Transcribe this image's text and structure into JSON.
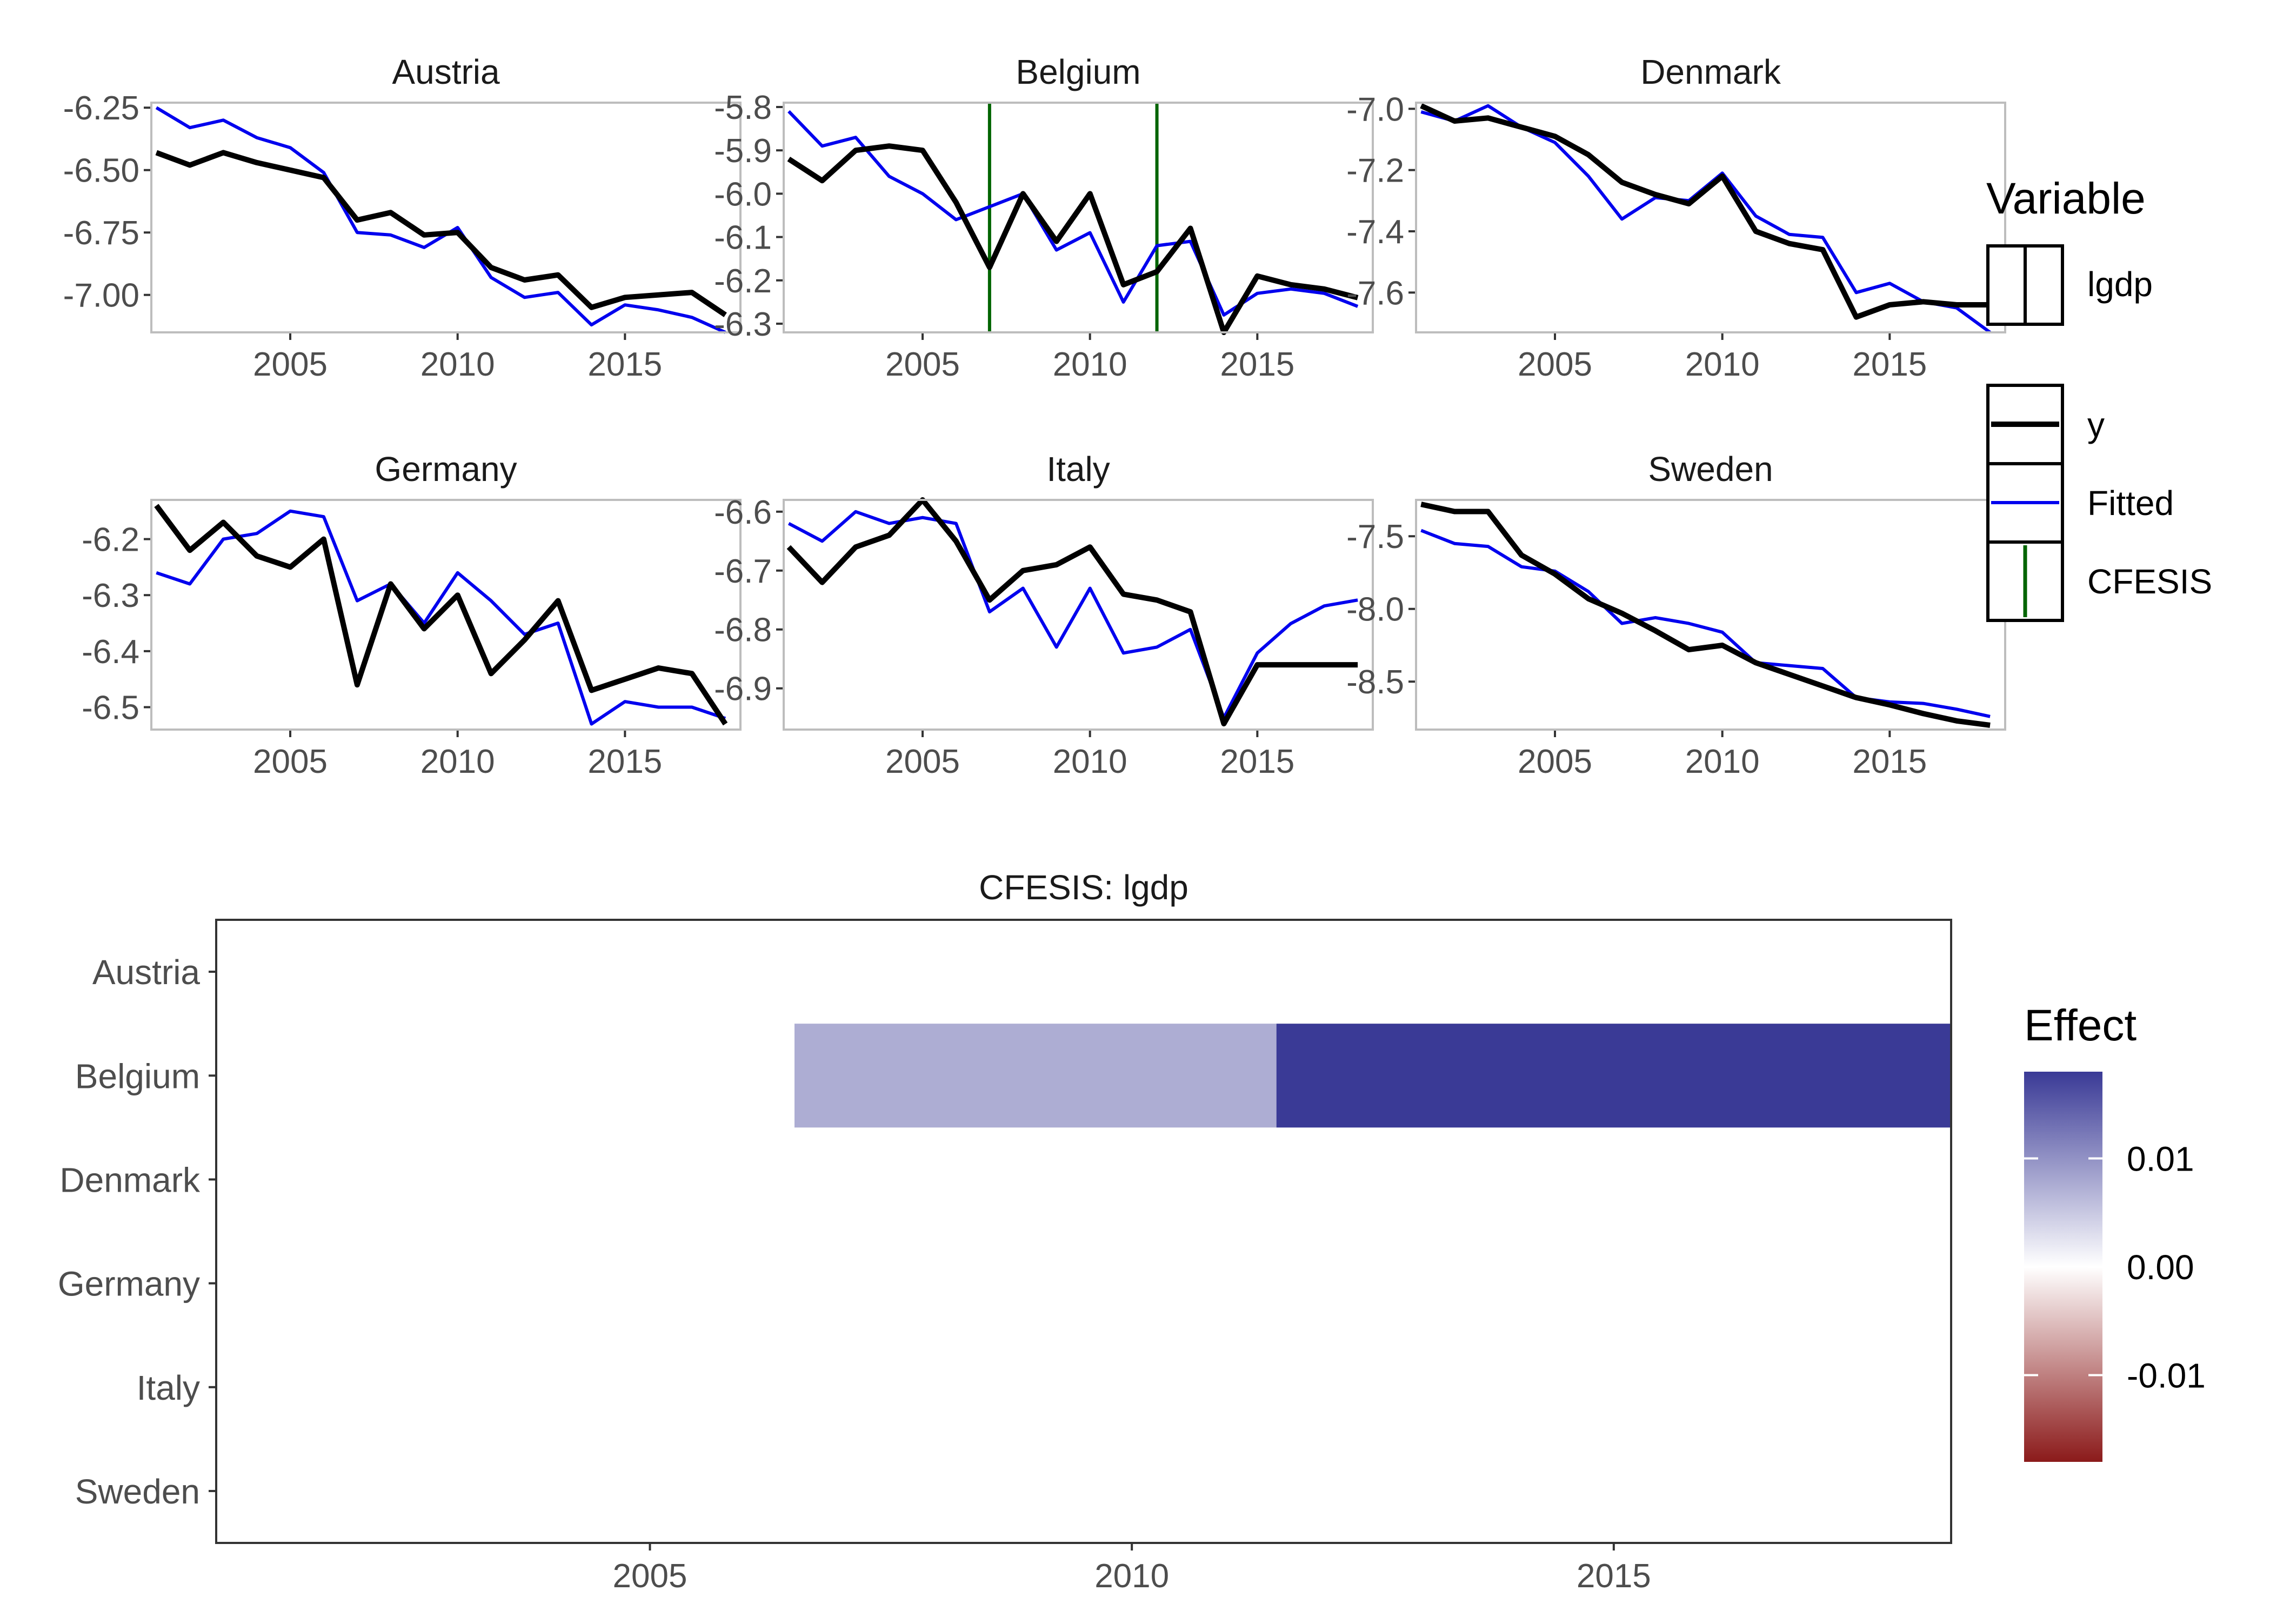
{
  "chart_data": [
    {
      "type": "line",
      "layout": "facet_wrap",
      "facets": [
        {
          "title": "Austria",
          "x": [
            2001,
            2002,
            2003,
            2004,
            2005,
            2006,
            2007,
            2008,
            2009,
            2010,
            2011,
            2012,
            2013,
            2014,
            2015,
            2016,
            2017,
            2018
          ],
          "ylim": [
            -7.15,
            -6.23
          ],
          "yticks": [
            -6.25,
            -6.5,
            -6.75,
            -7.0
          ],
          "ytick_labels": [
            "-6.25",
            "-6.50",
            "-6.75",
            "-7.00"
          ],
          "series": [
            {
              "name": "y",
              "values": [
                -6.43,
                -6.48,
                -6.43,
                -6.47,
                -6.5,
                -6.53,
                -6.7,
                -6.67,
                -6.76,
                -6.75,
                -6.89,
                -6.94,
                -6.92,
                -7.05,
                -7.01,
                -7.0,
                -6.99,
                -7.08
              ]
            },
            {
              "name": "Fitted",
              "values": [
                -6.25,
                -6.33,
                -6.3,
                -6.37,
                -6.41,
                -6.51,
                -6.75,
                -6.76,
                -6.81,
                -6.73,
                -6.93,
                -7.01,
                -6.99,
                -7.12,
                -7.04,
                -7.06,
                -7.09,
                -7.15
              ]
            }
          ],
          "cfesis": []
        },
        {
          "title": "Belgium",
          "x": [
            2001,
            2002,
            2003,
            2004,
            2005,
            2006,
            2007,
            2008,
            2009,
            2010,
            2011,
            2012,
            2013,
            2014,
            2015,
            2016,
            2017,
            2018
          ],
          "ylim": [
            -6.32,
            -5.79
          ],
          "yticks": [
            -5.8,
            -5.9,
            -6.0,
            -6.1,
            -6.2,
            -6.3
          ],
          "ytick_labels": [
            "-5.8",
            "-5.9",
            "-6.0",
            "-6.1",
            "-6.2",
            "-6.3"
          ],
          "series": [
            {
              "name": "y",
              "values": [
                -5.92,
                -5.97,
                -5.9,
                -5.89,
                -5.9,
                -6.02,
                -6.17,
                -6.0,
                -6.11,
                -6.0,
                -6.21,
                -6.18,
                -6.08,
                -6.32,
                -6.19,
                -6.21,
                -6.22,
                -6.24
              ]
            },
            {
              "name": "Fitted",
              "values": [
                -5.81,
                -5.89,
                -5.87,
                -5.96,
                -6.0,
                -6.06,
                -6.03,
                -6.0,
                -6.13,
                -6.09,
                -6.25,
                -6.12,
                -6.11,
                -6.28,
                -6.23,
                -6.22,
                -6.23,
                -6.26
              ]
            }
          ],
          "cfesis": [
            2007,
            2012
          ]
        },
        {
          "title": "Denmark",
          "x": [
            2001,
            2002,
            2003,
            2004,
            2005,
            2006,
            2007,
            2008,
            2009,
            2010,
            2011,
            2012,
            2013,
            2014,
            2015,
            2016,
            2017,
            2018
          ],
          "ylim": [
            -7.73,
            -6.98
          ],
          "yticks": [
            -7.0,
            -7.2,
            -7.4,
            -7.6
          ],
          "ytick_labels": [
            "-7.0",
            "-7.2",
            "-7.4",
            "-7.6"
          ],
          "series": [
            {
              "name": "y",
              "values": [
                -6.99,
                -7.04,
                -7.03,
                -7.06,
                -7.09,
                -7.15,
                -7.24,
                -7.28,
                -7.31,
                -7.22,
                -7.4,
                -7.44,
                -7.46,
                -7.68,
                -7.64,
                -7.63,
                -7.64,
                -7.64
              ]
            },
            {
              "name": "Fitted",
              "values": [
                -7.01,
                -7.04,
                -6.99,
                -7.06,
                -7.11,
                -7.22,
                -7.36,
                -7.29,
                -7.3,
                -7.21,
                -7.35,
                -7.41,
                -7.42,
                -7.6,
                -7.57,
                -7.63,
                -7.65,
                -7.73
              ]
            }
          ],
          "cfesis": []
        },
        {
          "title": "Germany",
          "x": [
            2001,
            2002,
            2003,
            2004,
            2005,
            2006,
            2007,
            2008,
            2009,
            2010,
            2011,
            2012,
            2013,
            2014,
            2015,
            2016,
            2017,
            2018
          ],
          "ylim": [
            -6.54,
            -6.13
          ],
          "yticks": [
            -6.2,
            -6.3,
            -6.4,
            -6.5
          ],
          "ytick_labels": [
            "-6.2",
            "-6.3",
            "-6.4",
            "-6.5"
          ],
          "series": [
            {
              "name": "y",
              "values": [
                -6.14,
                -6.22,
                -6.17,
                -6.23,
                -6.25,
                -6.2,
                -6.46,
                -6.28,
                -6.36,
                -6.3,
                -6.44,
                -6.38,
                -6.31,
                -6.47,
                -6.45,
                -6.43,
                -6.44,
                -6.53
              ]
            },
            {
              "name": "Fitted",
              "values": [
                -6.26,
                -6.28,
                -6.2,
                -6.19,
                -6.15,
                -6.16,
                -6.31,
                -6.28,
                -6.35,
                -6.26,
                -6.31,
                -6.37,
                -6.35,
                -6.53,
                -6.49,
                -6.5,
                -6.5,
                -6.52
              ]
            }
          ],
          "cfesis": []
        },
        {
          "title": "Italy",
          "x": [
            2001,
            2002,
            2003,
            2004,
            2005,
            2006,
            2007,
            2008,
            2009,
            2010,
            2011,
            2012,
            2013,
            2014,
            2015,
            2016,
            2017,
            2018
          ],
          "ylim": [
            -6.97,
            -6.58
          ],
          "yticks": [
            -6.6,
            -6.7,
            -6.8,
            -6.9
          ],
          "ytick_labels": [
            "-6.6",
            "-6.7",
            "-6.8",
            "-6.9"
          ],
          "series": [
            {
              "name": "y",
              "values": [
                -6.66,
                -6.72,
                -6.66,
                -6.64,
                -6.58,
                -6.65,
                -6.75,
                -6.7,
                -6.69,
                -6.66,
                -6.74,
                -6.75,
                -6.77,
                -6.96,
                -6.86,
                -6.86,
                -6.86,
                -6.86
              ]
            },
            {
              "name": "Fitted",
              "values": [
                -6.62,
                -6.65,
                -6.6,
                -6.62,
                -6.61,
                -6.62,
                -6.77,
                -6.73,
                -6.83,
                -6.73,
                -6.84,
                -6.83,
                -6.8,
                -6.95,
                -6.84,
                -6.79,
                -6.76,
                -6.75
              ]
            }
          ],
          "cfesis": []
        },
        {
          "title": "Sweden",
          "x": [
            2001,
            2002,
            2003,
            2004,
            2005,
            2006,
            2007,
            2008,
            2009,
            2010,
            2011,
            2012,
            2013,
            2014,
            2015,
            2016,
            2017,
            2018
          ],
          "ylim": [
            -8.83,
            -7.25
          ],
          "yticks": [
            -7.5,
            -8.0,
            -8.5
          ],
          "ytick_labels": [
            "-7.5",
            "-8.0",
            "-8.5"
          ],
          "series": [
            {
              "name": "y",
              "values": [
                -7.28,
                -7.33,
                -7.33,
                -7.63,
                -7.76,
                -7.93,
                -8.03,
                -8.15,
                -8.28,
                -8.25,
                -8.37,
                -8.45,
                -8.53,
                -8.61,
                -8.66,
                -8.72,
                -8.77,
                -8.8
              ]
            },
            {
              "name": "Fitted",
              "values": [
                -7.46,
                -7.55,
                -7.57,
                -7.71,
                -7.74,
                -7.88,
                -8.1,
                -8.06,
                -8.1,
                -8.16,
                -8.37,
                -8.39,
                -8.41,
                -8.61,
                -8.64,
                -8.65,
                -8.69,
                -8.74
              ]
            }
          ],
          "cfesis": []
        }
      ],
      "xlim": [
        2000.85,
        2018.45
      ],
      "xticks": [
        2005,
        2010,
        2015
      ],
      "xtick_labels": [
        "2005",
        "2010",
        "2015"
      ],
      "grid": false,
      "colors": {
        "y": "#000000",
        "Fitted": "#0000ee",
        "CFESIS": "#006400"
      },
      "legend": {
        "placement": "right",
        "variable_title": "Variable",
        "variable_items": [
          "lgdp"
        ],
        "line_items": [
          {
            "label": "y",
            "color": "#000000"
          },
          {
            "label": "Fitted",
            "color": "#0000ee"
          },
          {
            "label": "CFESIS",
            "color": "#006400"
          }
        ]
      }
    },
    {
      "type": "heatmap",
      "title": "CFESIS: lgdp",
      "rows": [
        "Austria",
        "Belgium",
        "Denmark",
        "Germany",
        "Italy",
        "Sweden"
      ],
      "xlim": [
        2000.5,
        2018.5
      ],
      "xticks": [
        2005,
        2010,
        2015
      ],
      "xtick_labels": [
        "2005",
        "2010",
        "2015"
      ],
      "cells": [
        {
          "row": "Belgium",
          "x_start": 2006.5,
          "x_end": 2011.5,
          "effect": 0.0075
        },
        {
          "row": "Belgium",
          "x_start": 2011.5,
          "x_end": 2018.5,
          "effect": 0.0185
        }
      ],
      "legend": {
        "title": "Effect",
        "placement": "right",
        "range": [
          -0.018,
          0.018
        ],
        "ticks": [
          0.01,
          0.0,
          -0.01
        ],
        "tick_labels": [
          "0.01",
          "0.00",
          "-0.01"
        ],
        "colors": {
          "low": "#8b1a1a",
          "mid": "#ffffff",
          "high": "#3a3a96"
        }
      }
    }
  ]
}
